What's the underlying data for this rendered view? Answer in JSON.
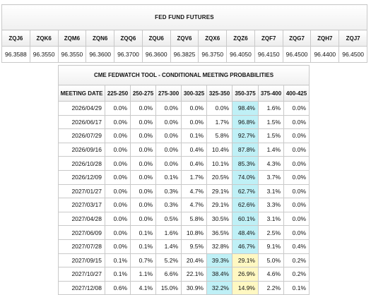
{
  "futures": {
    "title": "FED FUND FUTURES",
    "contracts": [
      {
        "code": "ZQJ6",
        "price": "96.3588"
      },
      {
        "code": "ZQK6",
        "price": "96.3550"
      },
      {
        "code": "ZQM6",
        "price": "96.3550"
      },
      {
        "code": "ZQN6",
        "price": "96.3600"
      },
      {
        "code": "ZQQ6",
        "price": "96.3700"
      },
      {
        "code": "ZQU6",
        "price": "96.3600"
      },
      {
        "code": "ZQV6",
        "price": "96.3825"
      },
      {
        "code": "ZQX6",
        "price": "96.3750"
      },
      {
        "code": "ZQZ6",
        "price": "96.4050"
      },
      {
        "code": "ZQF7",
        "price": "96.4150"
      },
      {
        "code": "ZQG7",
        "price": "96.4500"
      },
      {
        "code": "ZQH7",
        "price": "96.4400"
      },
      {
        "code": "ZQJ7",
        "price": "96.4500"
      }
    ]
  },
  "probabilities": {
    "title": "CME FEDWATCH TOOL - CONDITIONAL MEETING PROBABILITIES",
    "headers": [
      "MEETING DATE",
      "225-250",
      "250-275",
      "275-300",
      "300-325",
      "325-350",
      "350-375",
      "375-400",
      "400-425"
    ],
    "rows": [
      {
        "date": "2026/04/29",
        "cells": [
          {
            "v": "0.0%"
          },
          {
            "v": "0.0%"
          },
          {
            "v": "0.0%"
          },
          {
            "v": "0.0%"
          },
          {
            "v": "0.0%"
          },
          {
            "v": "98.4%",
            "hl": "cyan"
          },
          {
            "v": "1.6%"
          },
          {
            "v": "0.0%"
          }
        ]
      },
      {
        "date": "2026/06/17",
        "cells": [
          {
            "v": "0.0%"
          },
          {
            "v": "0.0%"
          },
          {
            "v": "0.0%"
          },
          {
            "v": "0.0%"
          },
          {
            "v": "1.7%"
          },
          {
            "v": "96.8%",
            "hl": "cyan"
          },
          {
            "v": "1.5%"
          },
          {
            "v": "0.0%"
          }
        ]
      },
      {
        "date": "2026/07/29",
        "cells": [
          {
            "v": "0.0%"
          },
          {
            "v": "0.0%"
          },
          {
            "v": "0.0%"
          },
          {
            "v": "0.1%"
          },
          {
            "v": "5.8%"
          },
          {
            "v": "92.7%",
            "hl": "cyan"
          },
          {
            "v": "1.5%"
          },
          {
            "v": "0.0%"
          }
        ]
      },
      {
        "date": "2026/09/16",
        "cells": [
          {
            "v": "0.0%"
          },
          {
            "v": "0.0%"
          },
          {
            "v": "0.0%"
          },
          {
            "v": "0.4%"
          },
          {
            "v": "10.4%"
          },
          {
            "v": "87.8%",
            "hl": "cyan"
          },
          {
            "v": "1.4%"
          },
          {
            "v": "0.0%"
          }
        ]
      },
      {
        "date": "2026/10/28",
        "cells": [
          {
            "v": "0.0%"
          },
          {
            "v": "0.0%"
          },
          {
            "v": "0.0%"
          },
          {
            "v": "0.4%"
          },
          {
            "v": "10.1%"
          },
          {
            "v": "85.3%",
            "hl": "cyan"
          },
          {
            "v": "4.3%"
          },
          {
            "v": "0.0%"
          }
        ]
      },
      {
        "date": "2026/12/09",
        "cells": [
          {
            "v": "0.0%"
          },
          {
            "v": "0.0%"
          },
          {
            "v": "0.1%"
          },
          {
            "v": "1.7%"
          },
          {
            "v": "20.5%"
          },
          {
            "v": "74.0%",
            "hl": "cyan"
          },
          {
            "v": "3.7%"
          },
          {
            "v": "0.0%"
          }
        ]
      },
      {
        "date": "2027/01/27",
        "cells": [
          {
            "v": "0.0%"
          },
          {
            "v": "0.0%"
          },
          {
            "v": "0.3%"
          },
          {
            "v": "4.7%"
          },
          {
            "v": "29.1%"
          },
          {
            "v": "62.7%",
            "hl": "cyan"
          },
          {
            "v": "3.1%"
          },
          {
            "v": "0.0%"
          }
        ]
      },
      {
        "date": "2027/03/17",
        "cells": [
          {
            "v": "0.0%"
          },
          {
            "v": "0.0%"
          },
          {
            "v": "0.3%"
          },
          {
            "v": "4.7%"
          },
          {
            "v": "29.1%"
          },
          {
            "v": "62.6%",
            "hl": "cyan"
          },
          {
            "v": "3.3%"
          },
          {
            "v": "0.0%"
          }
        ]
      },
      {
        "date": "2027/04/28",
        "cells": [
          {
            "v": "0.0%"
          },
          {
            "v": "0.0%"
          },
          {
            "v": "0.5%"
          },
          {
            "v": "5.8%"
          },
          {
            "v": "30.5%"
          },
          {
            "v": "60.1%",
            "hl": "cyan"
          },
          {
            "v": "3.1%"
          },
          {
            "v": "0.0%"
          }
        ]
      },
      {
        "date": "2027/06/09",
        "cells": [
          {
            "v": "0.0%"
          },
          {
            "v": "0.1%"
          },
          {
            "v": "1.6%"
          },
          {
            "v": "10.8%"
          },
          {
            "v": "36.5%"
          },
          {
            "v": "48.4%",
            "hl": "cyan"
          },
          {
            "v": "2.5%"
          },
          {
            "v": "0.0%"
          }
        ]
      },
      {
        "date": "2027/07/28",
        "cells": [
          {
            "v": "0.0%"
          },
          {
            "v": "0.1%"
          },
          {
            "v": "1.4%"
          },
          {
            "v": "9.5%"
          },
          {
            "v": "32.8%"
          },
          {
            "v": "46.7%",
            "hl": "cyan"
          },
          {
            "v": "9.1%"
          },
          {
            "v": "0.4%"
          }
        ]
      },
      {
        "date": "2027/09/15",
        "cells": [
          {
            "v": "0.1%"
          },
          {
            "v": "0.7%"
          },
          {
            "v": "5.2%"
          },
          {
            "v": "20.4%"
          },
          {
            "v": "39.3%",
            "hl": "cyan"
          },
          {
            "v": "29.1%",
            "hl": "yel"
          },
          {
            "v": "5.0%"
          },
          {
            "v": "0.2%"
          }
        ]
      },
      {
        "date": "2027/10/27",
        "cells": [
          {
            "v": "0.1%"
          },
          {
            "v": "1.1%"
          },
          {
            "v": "6.6%"
          },
          {
            "v": "22.1%"
          },
          {
            "v": "38.4%",
            "hl": "cyan"
          },
          {
            "v": "26.9%",
            "hl": "yel"
          },
          {
            "v": "4.6%"
          },
          {
            "v": "0.2%"
          }
        ]
      },
      {
        "date": "2027/12/08",
        "cells": [
          {
            "v": "0.6%"
          },
          {
            "v": "4.1%"
          },
          {
            "v": "15.0%"
          },
          {
            "v": "30.9%"
          },
          {
            "v": "32.2%",
            "hl": "cyan"
          },
          {
            "v": "14.9%",
            "hl": "yel"
          },
          {
            "v": "2.2%"
          },
          {
            "v": "0.1%"
          }
        ]
      }
    ]
  }
}
